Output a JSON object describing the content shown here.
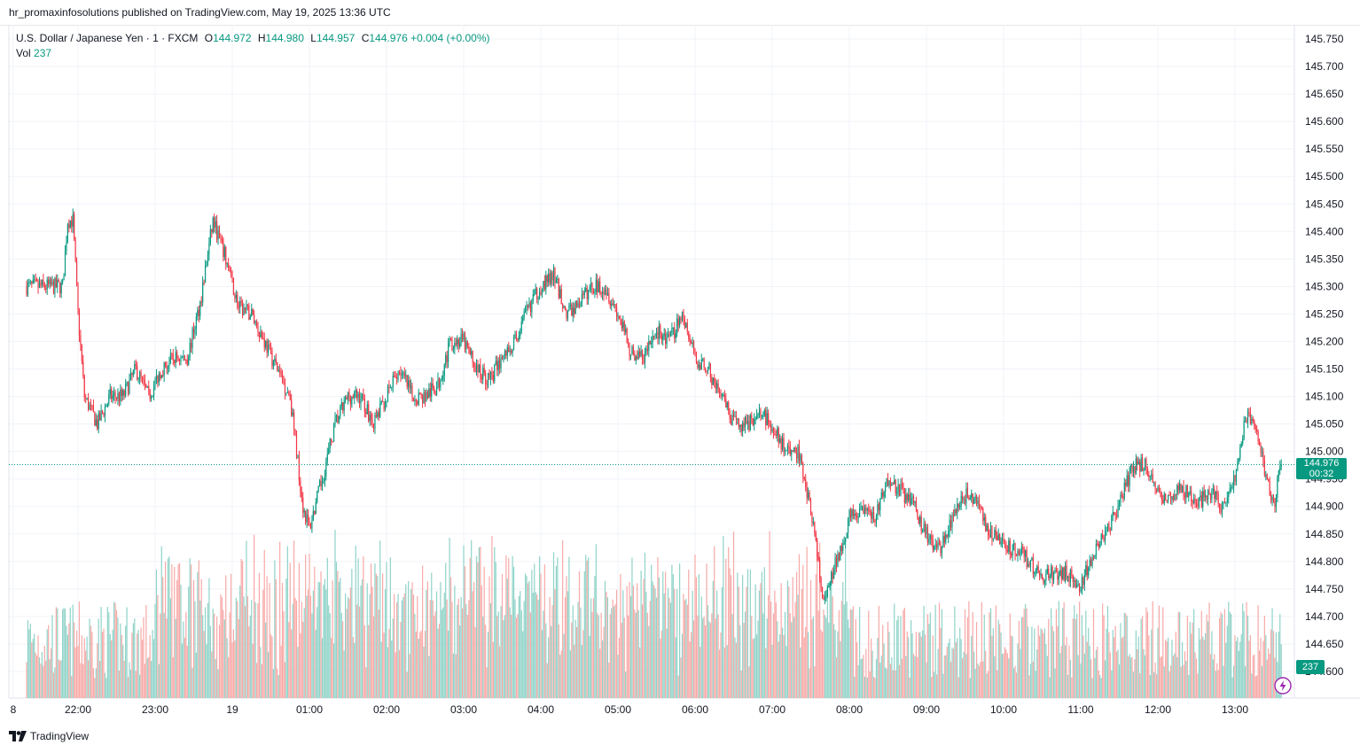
{
  "header": {
    "published": "hr_promaxinfosolutions published on TradingView.com, May 19, 2025 13:36 UTC"
  },
  "legend": {
    "symbol": "U.S. Dollar / Japanese Yen · 1 · FXCM",
    "o_label": "O",
    "o_value": "144.972",
    "h_label": "H",
    "h_value": "144.980",
    "l_label": "L",
    "l_value": "144.957",
    "c_label": "C",
    "c_value": "144.976",
    "change": "+0.004 (+0.00%)",
    "vol_label": "Vol",
    "vol_value": "237"
  },
  "price_tag": {
    "price": "144.976",
    "countdown": "00:32"
  },
  "vol_tag": "237",
  "footer": {
    "brand": "TradingView"
  },
  "colors": {
    "up": "#089981",
    "down": "#f23645",
    "up_vol": "#8fd3c8",
    "down_vol": "#f7a9a7",
    "grid": "#f0f3fa"
  },
  "chart_data": {
    "type": "candlestick",
    "ylim": [
      144.6,
      145.75
    ],
    "y_ticks": [
      "145.750",
      "145.700",
      "145.650",
      "145.600",
      "145.550",
      "145.500",
      "145.450",
      "145.400",
      "145.350",
      "145.300",
      "145.250",
      "145.200",
      "145.150",
      "145.100",
      "145.050",
      "145.000",
      "144.950",
      "144.900",
      "144.850",
      "144.800",
      "144.750",
      "144.700",
      "144.650",
      "144.600"
    ],
    "x_ticks": [
      "8",
      "22:00",
      "23:00",
      "19",
      "01:00",
      "02:00",
      "03:00",
      "04:00",
      "05:00",
      "06:00",
      "07:00",
      "08:00",
      "09:00",
      "10:00",
      "11:00",
      "12:00",
      "13:00"
    ],
    "last_price": 144.976,
    "price_path": [
      [
        "21:20",
        145.3
      ],
      [
        "21:30",
        145.3
      ],
      [
        "21:40",
        145.3
      ],
      [
        "21:48",
        145.3
      ],
      [
        "21:52",
        145.42
      ],
      [
        "21:56",
        145.42
      ],
      [
        "22:00",
        145.25
      ],
      [
        "22:05",
        145.1
      ],
      [
        "22:15",
        145.05
      ],
      [
        "22:25",
        145.1
      ],
      [
        "22:35",
        145.1
      ],
      [
        "22:45",
        145.15
      ],
      [
        "22:55",
        145.1
      ],
      [
        "23:05",
        145.15
      ],
      [
        "23:15",
        145.17
      ],
      [
        "23:25",
        145.17
      ],
      [
        "23:35",
        145.27
      ],
      [
        "23:45",
        145.42
      ],
      [
        "23:55",
        145.35
      ],
      [
        "00:05",
        145.26
      ],
      [
        "00:15",
        145.25
      ],
      [
        "00:25",
        145.2
      ],
      [
        "00:35",
        145.15
      ],
      [
        "00:45",
        145.1
      ],
      [
        "00:55",
        144.9
      ],
      [
        "01:00",
        144.86
      ],
      [
        "01:10",
        144.95
      ],
      [
        "01:20",
        145.05
      ],
      [
        "01:30",
        145.1
      ],
      [
        "01:40",
        145.1
      ],
      [
        "01:50",
        145.05
      ],
      [
        "02:00",
        145.1
      ],
      [
        "02:10",
        145.15
      ],
      [
        "02:20",
        145.1
      ],
      [
        "02:30",
        145.1
      ],
      [
        "02:40",
        145.12
      ],
      [
        "02:50",
        145.2
      ],
      [
        "03:00",
        145.2
      ],
      [
        "03:10",
        145.15
      ],
      [
        "03:20",
        145.13
      ],
      [
        "03:30",
        145.17
      ],
      [
        "03:40",
        145.2
      ],
      [
        "03:50",
        145.26
      ],
      [
        "04:00",
        145.3
      ],
      [
        "04:10",
        145.32
      ],
      [
        "04:20",
        145.25
      ],
      [
        "04:30",
        145.27
      ],
      [
        "04:40",
        145.3
      ],
      [
        "04:50",
        145.3
      ],
      [
        "05:00",
        145.25
      ],
      [
        "05:10",
        145.18
      ],
      [
        "05:20",
        145.17
      ],
      [
        "05:30",
        145.22
      ],
      [
        "05:40",
        145.2
      ],
      [
        "05:50",
        145.25
      ],
      [
        "06:00",
        145.17
      ],
      [
        "06:10",
        145.15
      ],
      [
        "06:20",
        145.1
      ],
      [
        "06:30",
        145.05
      ],
      [
        "06:40",
        145.05
      ],
      [
        "06:50",
        145.07
      ],
      [
        "07:00",
        145.05
      ],
      [
        "07:10",
        145.0
      ],
      [
        "07:20",
        145.0
      ],
      [
        "07:30",
        144.9
      ],
      [
        "07:40",
        144.72
      ],
      [
        "07:50",
        144.8
      ],
      [
        "08:00",
        144.88
      ],
      [
        "08:10",
        144.9
      ],
      [
        "08:20",
        144.88
      ],
      [
        "08:30",
        144.95
      ],
      [
        "08:40",
        144.93
      ],
      [
        "08:50",
        144.9
      ],
      [
        "09:00",
        144.85
      ],
      [
        "09:10",
        144.82
      ],
      [
        "09:20",
        144.88
      ],
      [
        "09:30",
        144.92
      ],
      [
        "09:40",
        144.9
      ],
      [
        "09:50",
        144.85
      ],
      [
        "10:00",
        144.83
      ],
      [
        "10:10",
        144.82
      ],
      [
        "10:20",
        144.8
      ],
      [
        "10:30",
        144.77
      ],
      [
        "10:40",
        144.78
      ],
      [
        "10:50",
        144.78
      ],
      [
        "11:00",
        144.75
      ],
      [
        "11:10",
        144.82
      ],
      [
        "11:20",
        144.85
      ],
      [
        "11:30",
        144.9
      ],
      [
        "11:40",
        144.97
      ],
      [
        "11:50",
        144.98
      ],
      [
        "12:00",
        144.92
      ],
      [
        "12:10",
        144.92
      ],
      [
        "12:20",
        144.93
      ],
      [
        "12:30",
        144.9
      ],
      [
        "12:40",
        144.93
      ],
      [
        "12:50",
        144.9
      ],
      [
        "13:00",
        144.95
      ],
      [
        "13:10",
        145.08
      ],
      [
        "13:20",
        145.0
      ],
      [
        "13:30",
        144.9
      ],
      [
        "13:36",
        144.976
      ]
    ]
  }
}
